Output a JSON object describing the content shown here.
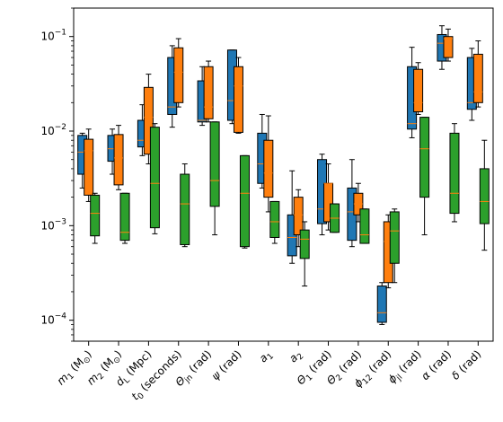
{
  "chart_data": {
    "type": "box",
    "title": "",
    "xlabel": "",
    "ylabel": "",
    "yscale": "log",
    "ylim": [
      6e-05,
      0.2
    ],
    "yticks": [
      {
        "value": 0.0001,
        "base": "10",
        "exp": "−4"
      },
      {
        "value": 0.001,
        "base": "10",
        "exp": "−3"
      },
      {
        "value": 0.01,
        "base": "10",
        "exp": "−2"
      },
      {
        "value": 0.1,
        "base": "10",
        "exp": "−1"
      }
    ],
    "grid": false,
    "legend": "none",
    "colors": {
      "s0": "#1f77b4",
      "s1": "#ff7f0e",
      "s2": "#2ca02c",
      "median": "#ff7f0e"
    },
    "categories": [
      {
        "main": "m",
        "sub": "1",
        "rest": " (M",
        "rest_sub": "⊙",
        "close": ")"
      },
      {
        "main": "m",
        "sub": "2",
        "rest": " (M",
        "rest_sub": "⊙",
        "close": ")"
      },
      {
        "main": "d",
        "sub": "L",
        "rest": " (Mpc)",
        "rest_sub": "",
        "close": ""
      },
      {
        "main": "t",
        "sub": "0",
        "rest": " (seconds)",
        "rest_sub": "",
        "close": ""
      },
      {
        "main": "Θ",
        "sub": "jn",
        "rest": " (rad)",
        "rest_sub": "",
        "close": ""
      },
      {
        "main": "ψ",
        "sub": "",
        "rest": " (rad)",
        "rest_sub": "",
        "close": ""
      },
      {
        "main": "a",
        "sub": "1",
        "rest": "",
        "rest_sub": "",
        "close": ""
      },
      {
        "main": "a",
        "sub": "2",
        "rest": "",
        "rest_sub": "",
        "close": ""
      },
      {
        "main": "Θ",
        "sub": "1",
        "rest": " (rad)",
        "rest_sub": "",
        "close": ""
      },
      {
        "main": "Θ",
        "sub": "2",
        "rest": " (rad)",
        "rest_sub": "",
        "close": ""
      },
      {
        "main": "ϕ",
        "sub": "12",
        "rest": " (rad)",
        "rest_sub": "",
        "close": ""
      },
      {
        "main": "ϕ",
        "sub": "jl",
        "rest": " (rad)",
        "rest_sub": "",
        "close": ""
      },
      {
        "main": "α",
        "sub": "",
        "rest": " (rad)",
        "rest_sub": "",
        "close": ""
      },
      {
        "main": "δ",
        "sub": "",
        "rest": " (rad)",
        "rest_sub": "",
        "close": ""
      }
    ],
    "series": [
      {
        "values": [
          {
            "min": 0.0025,
            "q1": 0.0035,
            "median": 0.006,
            "q3": 0.009,
            "max": 0.0095
          },
          {
            "min": 0.0035,
            "q1": 0.0048,
            "median": 0.0065,
            "q3": 0.009,
            "max": 0.0105
          },
          {
            "min": 0.0055,
            "q1": 0.0068,
            "median": 0.008,
            "q3": 0.013,
            "max": 0.019
          },
          {
            "min": 0.011,
            "q1": 0.015,
            "median": 0.018,
            "q3": 0.06,
            "max": 0.08
          },
          {
            "min": 0.0115,
            "q1": 0.0125,
            "median": 0.013,
            "q3": 0.034,
            "max": 0.048
          },
          {
            "min": 0.012,
            "q1": 0.013,
            "median": 0.021,
            "q3": 0.072,
            "max": 0.072
          },
          {
            "min": 0.0025,
            "q1": 0.0028,
            "median": 0.0045,
            "q3": 0.0095,
            "max": 0.015
          },
          {
            "min": 0.0004,
            "q1": 0.00048,
            "median": 0.00075,
            "q3": 0.0013,
            "max": 0.0038
          },
          {
            "min": 0.0008,
            "q1": 0.00105,
            "median": 0.0015,
            "q3": 0.005,
            "max": 0.0057
          },
          {
            "min": 0.0006,
            "q1": 0.0007,
            "median": 0.0014,
            "q3": 0.0025,
            "max": 0.005
          },
          {
            "min": 9e-05,
            "q1": 9.5e-05,
            "median": 0.00012,
            "q3": 0.00023,
            "max": 0.00025
          },
          {
            "min": 0.0085,
            "q1": 0.0105,
            "median": 0.012,
            "q3": 0.048,
            "max": 0.077
          },
          {
            "min": 0.045,
            "q1": 0.055,
            "median": 0.085,
            "q3": 0.105,
            "max": 0.13
          },
          {
            "min": 0.013,
            "q1": 0.017,
            "median": 0.02,
            "q3": 0.06,
            "max": 0.075
          }
        ]
      },
      {
        "values": [
          {
            "min": 0.0018,
            "q1": 0.0021,
            "median": 0.0062,
            "q3": 0.0082,
            "max": 0.0105
          },
          {
            "min": 0.0024,
            "q1": 0.0027,
            "median": 0.0052,
            "q3": 0.0092,
            "max": 0.0115
          },
          {
            "min": 0.0045,
            "q1": 0.0057,
            "median": 0.014,
            "q3": 0.029,
            "max": 0.04
          },
          {
            "min": 0.018,
            "q1": 0.02,
            "median": 0.042,
            "q3": 0.076,
            "max": 0.095
          },
          {
            "min": 0.0125,
            "q1": 0.0135,
            "median": 0.018,
            "q3": 0.048,
            "max": 0.055
          },
          {
            "min": 0.0095,
            "q1": 0.0097,
            "median": 0.03,
            "q3": 0.048,
            "max": 0.06
          },
          {
            "min": 0.0014,
            "q1": 0.002,
            "median": 0.0036,
            "q3": 0.008,
            "max": 0.0145
          },
          {
            "min": 0.0006,
            "q1": 0.0008,
            "median": 0.0013,
            "q3": 0.002,
            "max": 0.0024
          },
          {
            "min": 0.0009,
            "q1": 0.0011,
            "median": 0.0028,
            "q3": 0.0028,
            "max": 0.0045
          },
          {
            "min": 0.0011,
            "q1": 0.0013,
            "median": 0.0017,
            "q3": 0.0022,
            "max": 0.0028
          },
          {
            "min": 0.00022,
            "q1": 0.00025,
            "median": 0.00068,
            "q3": 0.0011,
            "max": 0.0013
          },
          {
            "min": 0.015,
            "q1": 0.016,
            "median": 0.02,
            "q3": 0.045,
            "max": 0.053
          },
          {
            "min": 0.055,
            "q1": 0.06,
            "median": 0.095,
            "q3": 0.1,
            "max": 0.12
          },
          {
            "min": 0.018,
            "q1": 0.02,
            "median": 0.026,
            "q3": 0.065,
            "max": 0.09
          }
        ]
      },
      {
        "values": [
          {
            "min": 0.00065,
            "q1": 0.00078,
            "median": 0.00135,
            "q3": 0.0021,
            "max": 0.0022
          },
          {
            "min": 0.00065,
            "q1": 0.0007,
            "median": 0.00085,
            "q3": 0.0022,
            "max": 0.0022
          },
          {
            "min": 0.00082,
            "q1": 0.00095,
            "median": 0.0028,
            "q3": 0.011,
            "max": 0.012
          },
          {
            "min": 0.0006,
            "q1": 0.00063,
            "median": 0.0017,
            "q3": 0.0035,
            "max": 0.0045
          },
          {
            "min": 0.0008,
            "q1": 0.0016,
            "median": 0.003,
            "q3": 0.0125,
            "max": 0.0125
          },
          {
            "min": 0.00058,
            "q1": 0.0006,
            "median": 0.0022,
            "q3": 0.0055,
            "max": 0.0055
          },
          {
            "min": 0.00065,
            "q1": 0.00075,
            "median": 0.0011,
            "q3": 0.0018,
            "max": 0.0018
          },
          {
            "min": 0.00023,
            "q1": 0.00045,
            "median": 0.00072,
            "q3": 0.0009,
            "max": 0.0011
          },
          {
            "min": 0.00085,
            "q1": 0.00085,
            "median": 0.0012,
            "q3": 0.0017,
            "max": 0.0017
          },
          {
            "min": 0.00065,
            "q1": 0.00065,
            "median": 0.0008,
            "q3": 0.0015,
            "max": 0.0015
          },
          {
            "min": 0.00025,
            "q1": 0.0004,
            "median": 0.00088,
            "q3": 0.0014,
            "max": 0.0015
          },
          {
            "min": 0.0008,
            "q1": 0.002,
            "median": 0.0065,
            "q3": 0.014,
            "max": 0.014
          },
          {
            "min": 0.0011,
            "q1": 0.00135,
            "median": 0.0022,
            "q3": 0.0095,
            "max": 0.012
          },
          {
            "min": 0.00055,
            "q1": 0.00105,
            "median": 0.0018,
            "q3": 0.004,
            "max": 0.008
          }
        ]
      }
    ]
  }
}
